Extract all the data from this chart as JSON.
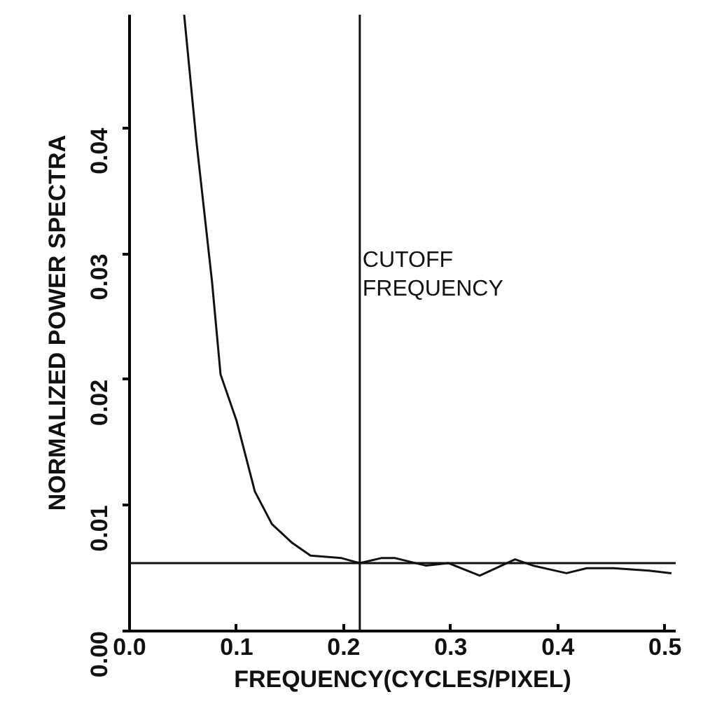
{
  "chart_data": {
    "type": "line",
    "xlabel": "FREQUENCY(CYCLES/PIXEL)",
    "ylabel": "NORMALIZED POWER SPECTRA",
    "x": [
      0.051,
      0.0625,
      0.077,
      0.085,
      0.1,
      0.117,
      0.133,
      0.152,
      0.169,
      0.198,
      0.215,
      0.235,
      0.248,
      0.277,
      0.298,
      0.327,
      0.36,
      0.377,
      0.408,
      0.427,
      0.452,
      0.485,
      0.506
    ],
    "series": [
      {
        "color": "#111111",
        "values": [
          0.049,
          0.0389,
          0.0278,
          0.0204,
          0.0167,
          0.0111,
          0.0085,
          0.007,
          0.006,
          0.0058,
          0.0054,
          0.0058,
          0.0058,
          0.0052,
          0.0054,
          0.0044,
          0.0057,
          0.0052,
          0.0046,
          0.005,
          0.005,
          0.0048,
          0.0046
        ]
      }
    ],
    "xlim": [
      0,
      0.51
    ],
    "ylim": [
      0,
      0.049
    ],
    "xticks": [
      {
        "value": 0,
        "label": "0.0"
      },
      0.1,
      0.2,
      0.3,
      0.4,
      0.5
    ],
    "yticks": [
      {
        "value": 0,
        "label": "0.00"
      },
      0.01,
      0.02,
      0.03,
      0.04
    ],
    "ref_lines": [
      {
        "axis": "x",
        "value": 0.215,
        "label": "CUTOFF FREQUENCY",
        "color": "#111111"
      },
      {
        "axis": "y",
        "value": 0.0054,
        "color": "#111111"
      }
    ],
    "marker": "none",
    "line_style": "solid"
  }
}
